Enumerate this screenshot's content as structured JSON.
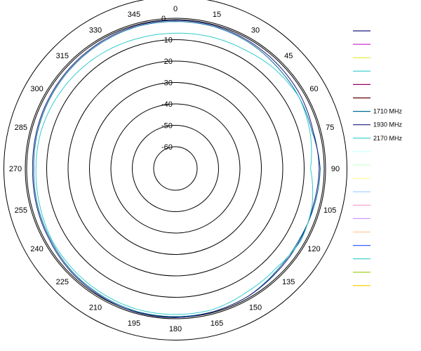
{
  "chart_data": {
    "type": "polar-line",
    "title": "",
    "angle_direction": "clockwise",
    "angle_zero": "top",
    "angle_labels": [
      "0",
      "15",
      "30",
      "45",
      "60",
      "75",
      "90",
      "105",
      "120",
      "135",
      "150",
      "165",
      "180",
      "195",
      "210",
      "225",
      "240",
      "255",
      "270",
      "285",
      "300",
      "315",
      "330",
      "345"
    ],
    "angle_values": [
      0,
      15,
      30,
      45,
      60,
      75,
      90,
      105,
      120,
      135,
      150,
      165,
      180,
      195,
      210,
      225,
      240,
      255,
      270,
      285,
      300,
      315,
      330,
      345
    ],
    "radial_labels": [
      "10",
      "0",
      "-10",
      "-20",
      "-30",
      "-40",
      "-50",
      "-60"
    ],
    "radial_values": [
      10,
      0,
      -10,
      -20,
      -30,
      -40,
      -50,
      -60
    ],
    "rlim": [
      -70,
      10
    ],
    "grid": true,
    "legend_position": "right",
    "legend": [
      {
        "label": "",
        "color": "#1a1a80"
      },
      {
        "label": "",
        "color": "#cc33cc"
      },
      {
        "label": "",
        "color": "#e6e633"
      },
      {
        "label": "",
        "color": "#33cccc"
      },
      {
        "label": "",
        "color": "#990066"
      },
      {
        "label": "",
        "color": "#660000"
      },
      {
        "label": "1710 MHz",
        "color": "#006b99"
      },
      {
        "label": "1930 MHz",
        "color": "#1a1a80"
      },
      {
        "label": "2170 MHz",
        "color": "#33cccc"
      },
      {
        "label": "",
        "color": "#ccffff"
      },
      {
        "label": "",
        "color": "#ccffcc"
      },
      {
        "label": "",
        "color": "#ffff99"
      },
      {
        "label": "",
        "color": "#99ccff"
      },
      {
        "label": "",
        "color": "#ff99cc"
      },
      {
        "label": "",
        "color": "#cc99ff"
      },
      {
        "label": "",
        "color": "#ffcc99"
      },
      {
        "label": "",
        "color": "#3366ff"
      },
      {
        "label": "",
        "color": "#33cccc"
      },
      {
        "label": "",
        "color": "#99cc00"
      },
      {
        "label": "",
        "color": "#ffcc00"
      }
    ],
    "series": [
      {
        "name": "1710 MHz",
        "color": "#006b99",
        "theta": [
          0,
          15,
          30,
          45,
          60,
          75,
          90,
          105,
          120,
          135,
          150,
          165,
          180,
          195,
          210,
          225,
          240,
          255,
          270,
          285,
          300,
          315,
          330,
          345
        ],
        "r": [
          -1.5,
          -1.5,
          -2,
          -3,
          -3.5,
          -4,
          -2.5,
          -3,
          -3.5,
          -3,
          -1.5,
          -1,
          -1,
          -1,
          -1.5,
          -2,
          -3,
          -3.5,
          -4,
          -3.5,
          -3,
          -2.5,
          -2,
          -1.5
        ]
      },
      {
        "name": "1930 MHz",
        "color": "#1a1a80",
        "theta": [
          0,
          15,
          30,
          45,
          60,
          75,
          90,
          105,
          120,
          135,
          150,
          165,
          180,
          195,
          210,
          225,
          240,
          255,
          270,
          285,
          300,
          315,
          330,
          345
        ],
        "r": [
          -1,
          -1,
          -1.5,
          -2,
          -2.5,
          -3.5,
          -3,
          -3.5,
          -3,
          -2.5,
          -1.5,
          -1,
          -0.5,
          -0.5,
          -1,
          -1.5,
          -2.5,
          -3,
          -3.5,
          -3,
          -2.5,
          -2,
          -1.5,
          -1
        ]
      },
      {
        "name": "2170 MHz",
        "color": "#33cccc",
        "theta": [
          0,
          15,
          30,
          45,
          60,
          75,
          90,
          105,
          120,
          135,
          150,
          165,
          180,
          195,
          210,
          225,
          240,
          255,
          270,
          285,
          300,
          315,
          330,
          345
        ],
        "r": [
          -7,
          -6.5,
          -6,
          -4.5,
          -3.5,
          -5,
          -7,
          -4,
          -2.5,
          -4,
          -3.5,
          -2,
          -2,
          -2,
          -2.5,
          -3,
          -3.5,
          -4.5,
          -5,
          -5,
          -5.5,
          -6,
          -6.5,
          -7
        ]
      }
    ]
  }
}
